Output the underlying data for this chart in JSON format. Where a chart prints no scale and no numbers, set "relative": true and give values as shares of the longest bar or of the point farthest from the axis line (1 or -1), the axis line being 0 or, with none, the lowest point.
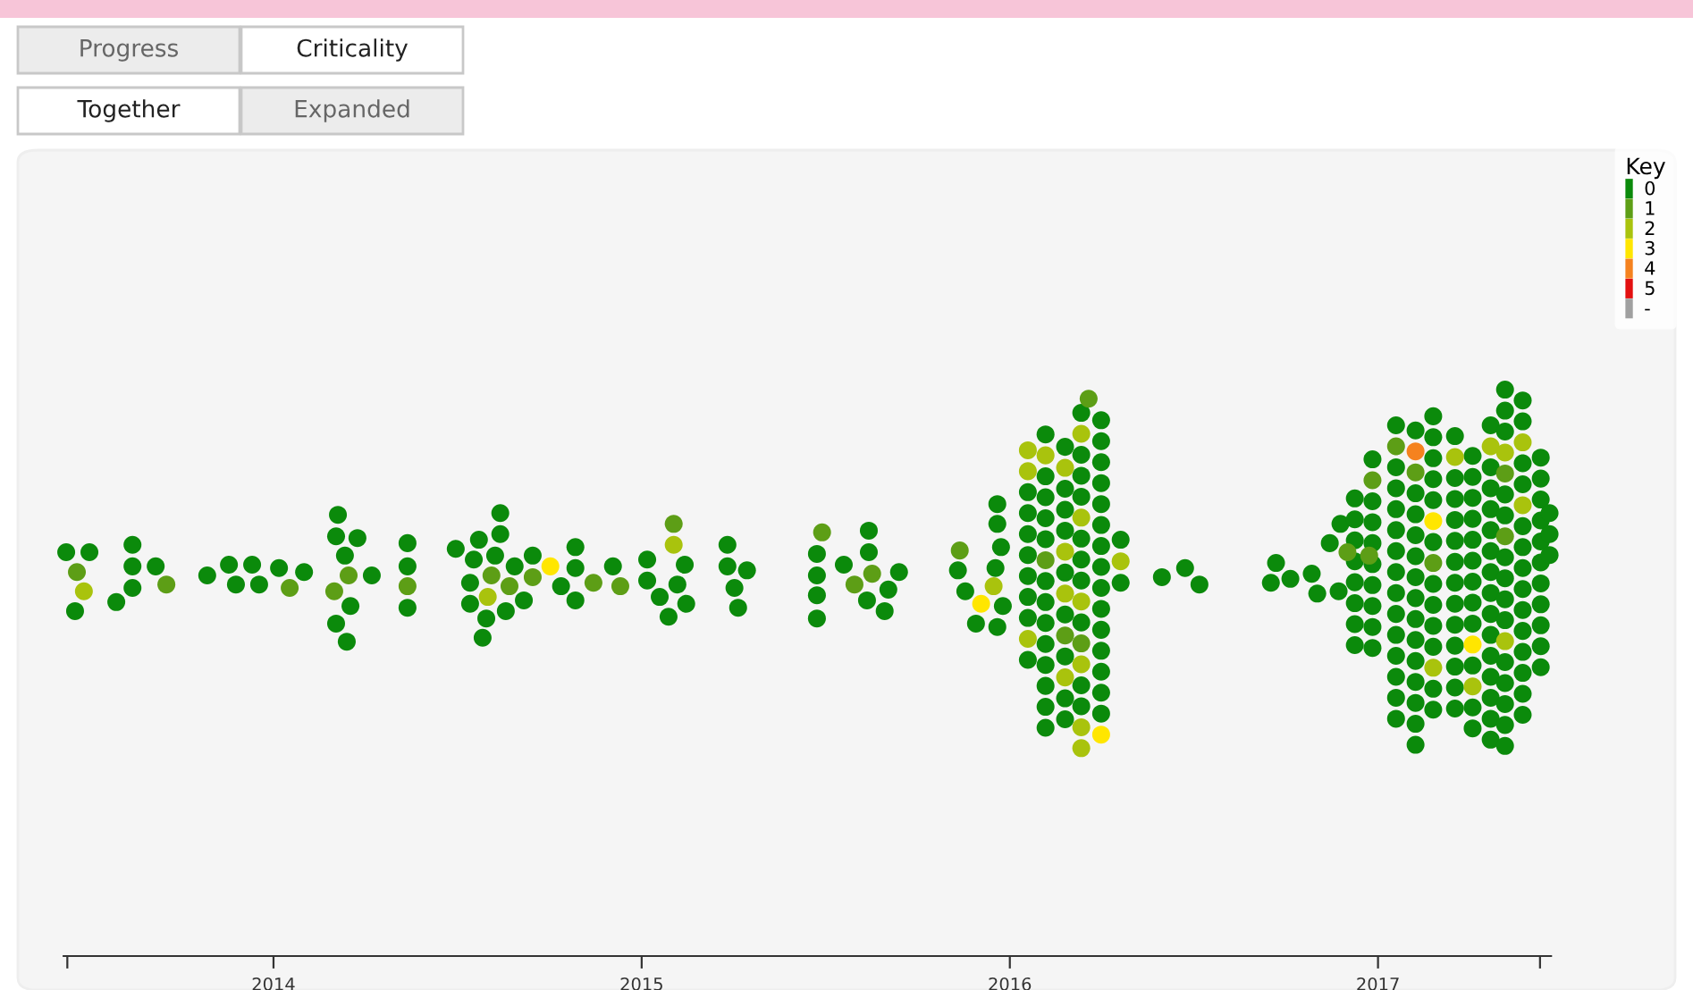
{
  "chart_data": {
    "type": "scatter",
    "relative": true,
    "marker": "circle",
    "legend": "top right",
    "legend_title": "Key",
    "grid": false,
    "annotations": [
      "Progress",
      "Criticality",
      "Together",
      "Expanded"
    ],
    "xlim": [
      2013.43,
      2017.47
    ],
    "xticks": [
      {
        "value": 2013.44,
        "label": null
      },
      2014,
      2015,
      2016,
      2017,
      {
        "value": 2017.44,
        "label": null
      }
    ],
    "series": [
      {
        "name": "0",
        "color": "#0b8a0b",
        "x": [
          2013.437,
          2013.5,
          2013.461,
          2013.617,
          2013.617,
          2013.68,
          2013.617,
          2013.573,
          2013.82,
          2013.879,
          2013.942,
          2014.015,
          2014.083,
          2013.898,
          2013.961,
          2014.175,
          2014.17,
          2014.228,
          2014.194,
          2014.267,
          2014.209,
          2014.17,
          2014.199,
          2014.364,
          2014.364,
          2014.364,
          2014.495,
          2014.558,
          2014.616,
          2014.616,
          2014.544,
          2014.602,
          2014.655,
          2014.704,
          2014.534,
          2014.534,
          2014.631,
          2014.68,
          2014.578,
          2014.568,
          2014.82,
          2014.82,
          2014.781,
          2014.82,
          2014.922,
          2015.015,
          2015.015,
          2015.049,
          2015.117,
          2015.097,
          2015.121,
          2015.073,
          2015.233,
          2015.233,
          2015.286,
          2015.252,
          2015.262,
          2015.476,
          2015.476,
          2015.476,
          2015.476,
          2015.549,
          2015.617,
          2015.617,
          2015.699,
          2015.67,
          2015.612,
          2015.66,
          2015.859,
          2015.879,
          2015.908,
          2015.966,
          2015.966,
          2015.976,
          2015.961,
          2015.981,
          2015.966,
          2016.049,
          2016.049,
          2016.049,
          2016.049,
          2016.049,
          2016.049,
          2016.049,
          2016.049,
          2016.097,
          2016.097,
          2016.097,
          2016.097,
          2016.097,
          2016.097,
          2016.097,
          2016.097,
          2016.097,
          2016.097,
          2016.097,
          2016.097,
          2016.097,
          2016.15,
          2016.15,
          2016.15,
          2016.15,
          2016.15,
          2016.15,
          2016.15,
          2016.15,
          2016.15,
          2016.194,
          2016.194,
          2016.194,
          2016.194,
          2016.194,
          2016.194,
          2016.194,
          2016.194,
          2016.194,
          2016.194,
          2016.248,
          2016.248,
          2016.248,
          2016.248,
          2016.248,
          2016.248,
          2016.248,
          2016.248,
          2016.248,
          2016.248,
          2016.248,
          2016.248,
          2016.248,
          2016.248,
          2016.248,
          2016.301,
          2016.301,
          2016.413,
          2016.476,
          2016.515,
          2016.723,
          2016.709,
          2016.762,
          2016.82,
          2016.835,
          2016.869,
          2016.898,
          2016.893,
          2016.937,
          2016.937,
          2016.937,
          2016.937,
          2016.937,
          2016.937,
          2016.937,
          2016.937,
          2016.985,
          2016.985,
          2016.985,
          2016.985,
          2016.985,
          2016.985,
          2016.985,
          2016.985,
          2016.985,
          2017.049,
          2017.049,
          2017.049,
          2017.049,
          2017.049,
          2017.049,
          2017.049,
          2017.049,
          2017.049,
          2017.049,
          2017.049,
          2017.049,
          2017.049,
          2017.049,
          2017.102,
          2017.102,
          2017.102,
          2017.102,
          2017.102,
          2017.102,
          2017.102,
          2017.102,
          2017.102,
          2017.102,
          2017.102,
          2017.102,
          2017.102,
          2017.102,
          2017.15,
          2017.15,
          2017.15,
          2017.15,
          2017.15,
          2017.15,
          2017.15,
          2017.15,
          2017.15,
          2017.15,
          2017.15,
          2017.15,
          2017.209,
          2017.209,
          2017.209,
          2017.209,
          2017.209,
          2017.209,
          2017.209,
          2017.209,
          2017.209,
          2017.209,
          2017.209,
          2017.209,
          2017.209,
          2017.257,
          2017.257,
          2017.257,
          2017.257,
          2017.257,
          2017.257,
          2017.257,
          2017.257,
          2017.257,
          2017.257,
          2017.257,
          2017.257,
          2017.306,
          2017.306,
          2017.306,
          2017.306,
          2017.306,
          2017.306,
          2017.306,
          2017.306,
          2017.306,
          2017.306,
          2017.306,
          2017.306,
          2017.306,
          2017.306,
          2017.306,
          2017.345,
          2017.345,
          2017.345,
          2017.345,
          2017.345,
          2017.345,
          2017.345,
          2017.345,
          2017.345,
          2017.345,
          2017.345,
          2017.345,
          2017.345,
          2017.345,
          2017.393,
          2017.393,
          2017.393,
          2017.393,
          2017.393,
          2017.393,
          2017.393,
          2017.393,
          2017.393,
          2017.393,
          2017.393,
          2017.393,
          2017.393,
          2017.393,
          2017.442,
          2017.442,
          2017.442,
          2017.442,
          2017.442,
          2017.442,
          2017.442,
          2017.442,
          2017.442,
          2017.442,
          2017.442,
          2017.466,
          2017.466,
          2017.466
        ],
        "values": [
          0.713,
          0.713,
          0.609,
          0.726,
          0.688,
          0.688,
          0.65,
          0.625,
          0.672,
          0.691,
          0.691,
          0.685,
          0.678,
          0.656,
          0.656,
          0.779,
          0.741,
          0.738,
          0.707,
          0.672,
          0.618,
          0.587,
          0.555,
          0.729,
          0.688,
          0.615,
          0.719,
          0.735,
          0.782,
          0.745,
          0.7,
          0.707,
          0.688,
          0.707,
          0.659,
          0.622,
          0.609,
          0.628,
          0.596,
          0.562,
          0.722,
          0.685,
          0.653,
          0.628,
          0.688,
          0.7,
          0.663,
          0.634,
          0.691,
          0.656,
          0.622,
          0.599,
          0.726,
          0.688,
          0.681,
          0.65,
          0.615,
          0.71,
          0.672,
          0.637,
          0.596,
          0.691,
          0.751,
          0.713,
          0.678,
          0.647,
          0.628,
          0.609,
          0.681,
          0.644,
          0.587,
          0.798,
          0.763,
          0.722,
          0.685,
          0.618,
          0.581,
          0.819,
          0.782,
          0.745,
          0.708,
          0.671,
          0.634,
          0.597,
          0.523,
          0.921,
          0.847,
          0.81,
          0.773,
          0.736,
          0.662,
          0.625,
          0.588,
          0.551,
          0.514,
          0.477,
          0.44,
          0.403,
          0.899,
          0.825,
          0.788,
          0.751,
          0.677,
          0.603,
          0.529,
          0.455,
          0.418,
          0.959,
          0.885,
          0.848,
          0.811,
          0.737,
          0.7,
          0.663,
          0.589,
          0.478,
          0.441,
          0.946,
          0.909,
          0.872,
          0.835,
          0.798,
          0.761,
          0.724,
          0.687,
          0.65,
          0.613,
          0.576,
          0.539,
          0.502,
          0.465,
          0.428,
          0.735,
          0.659,
          0.669,
          0.685,
          0.656,
          0.694,
          0.659,
          0.666,
          0.675,
          0.64,
          0.729,
          0.763,
          0.644,
          0.808,
          0.771,
          0.734,
          0.697,
          0.66,
          0.623,
          0.586,
          0.549,
          0.877,
          0.803,
          0.766,
          0.729,
          0.692,
          0.655,
          0.618,
          0.581,
          0.544,
          0.937,
          0.863,
          0.826,
          0.789,
          0.752,
          0.715,
          0.678,
          0.641,
          0.604,
          0.567,
          0.53,
          0.493,
          0.456,
          0.419,
          0.928,
          0.817,
          0.78,
          0.743,
          0.706,
          0.669,
          0.632,
          0.595,
          0.558,
          0.521,
          0.484,
          0.447,
          0.41,
          0.373,
          0.953,
          0.916,
          0.879,
          0.842,
          0.805,
          0.731,
          0.657,
          0.62,
          0.583,
          0.546,
          0.472,
          0.435,
          0.918,
          0.844,
          0.807,
          0.77,
          0.733,
          0.696,
          0.659,
          0.622,
          0.585,
          0.548,
          0.511,
          0.474,
          0.437,
          0.883,
          0.846,
          0.809,
          0.772,
          0.735,
          0.698,
          0.661,
          0.624,
          0.587,
          0.513,
          0.439,
          0.402,
          0.937,
          0.863,
          0.826,
          0.789,
          0.752,
          0.715,
          0.678,
          0.641,
          0.604,
          0.567,
          0.53,
          0.493,
          0.456,
          0.419,
          0.382,
          1.0,
          0.963,
          0.926,
          0.815,
          0.778,
          0.704,
          0.667,
          0.63,
          0.593,
          0.519,
          0.482,
          0.445,
          0.408,
          0.371,
          0.981,
          0.944,
          0.87,
          0.833,
          0.759,
          0.722,
          0.685,
          0.648,
          0.611,
          0.574,
          0.537,
          0.5,
          0.463,
          0.426,
          0.88,
          0.843,
          0.806,
          0.769,
          0.732,
          0.695,
          0.658,
          0.621,
          0.584,
          0.547,
          0.51,
          0.782,
          0.745,
          0.708
        ]
      },
      {
        "name": "1",
        "color": "#5d9e16",
        "x": [
          2013.466,
          2013.709,
          2014.044,
          2014.204,
          2014.165,
          2014.364,
          2014.592,
          2014.641,
          2014.704,
          2014.869,
          2014.942,
          2015.087,
          2015.49,
          2015.626,
          2015.578,
          2015.864,
          2016.097,
          2016.15,
          2016.194,
          2016.214,
          2016.917,
          2016.976,
          2016.985,
          2017.049,
          2017.102,
          2017.15,
          2017.345,
          2017.345
        ],
        "values": [
          0.678,
          0.656,
          0.65,
          0.672,
          0.644,
          0.653,
          0.672,
          0.653,
          0.669,
          0.659,
          0.653,
          0.763,
          0.748,
          0.675,
          0.656,
          0.716,
          0.699,
          0.566,
          0.552,
          0.984,
          0.713,
          0.707,
          0.84,
          0.9,
          0.854,
          0.694,
          0.852,
          0.741
        ]
      },
      {
        "name": "2",
        "color": "#a9c30d",
        "x": [
          2013.485,
          2014.582,
          2015.087,
          2015.956,
          2016.049,
          2016.049,
          2016.049,
          2016.097,
          2016.15,
          2016.15,
          2016.15,
          2016.15,
          2016.194,
          2016.194,
          2016.194,
          2016.194,
          2016.194,
          2016.194,
          2016.301,
          2017.15,
          2017.209,
          2017.257,
          2017.306,
          2017.345,
          2017.345,
          2017.393,
          2017.393
        ],
        "values": [
          0.644,
          0.634,
          0.726,
          0.653,
          0.893,
          0.856,
          0.56,
          0.884,
          0.862,
          0.714,
          0.64,
          0.492,
          0.922,
          0.774,
          0.626,
          0.515,
          0.404,
          0.367,
          0.697,
          0.509,
          0.881,
          0.476,
          0.9,
          0.889,
          0.556,
          0.907,
          0.796
        ]
      },
      {
        "name": "3",
        "color": "#ffe600",
        "x": [
          2014.752,
          2015.922,
          2016.248,
          2017.15,
          2017.257
        ],
        "values": [
          0.688,
          0.622,
          0.391,
          0.768,
          0.55
        ]
      },
      {
        "name": "4",
        "color": "#f5821f",
        "x": [
          2017.102
        ],
        "values": [
          0.891
        ]
      },
      {
        "name": "5",
        "color": "#e31010"
      },
      {
        "name": "-",
        "color": "#a0a0a0"
      }
    ]
  }
}
